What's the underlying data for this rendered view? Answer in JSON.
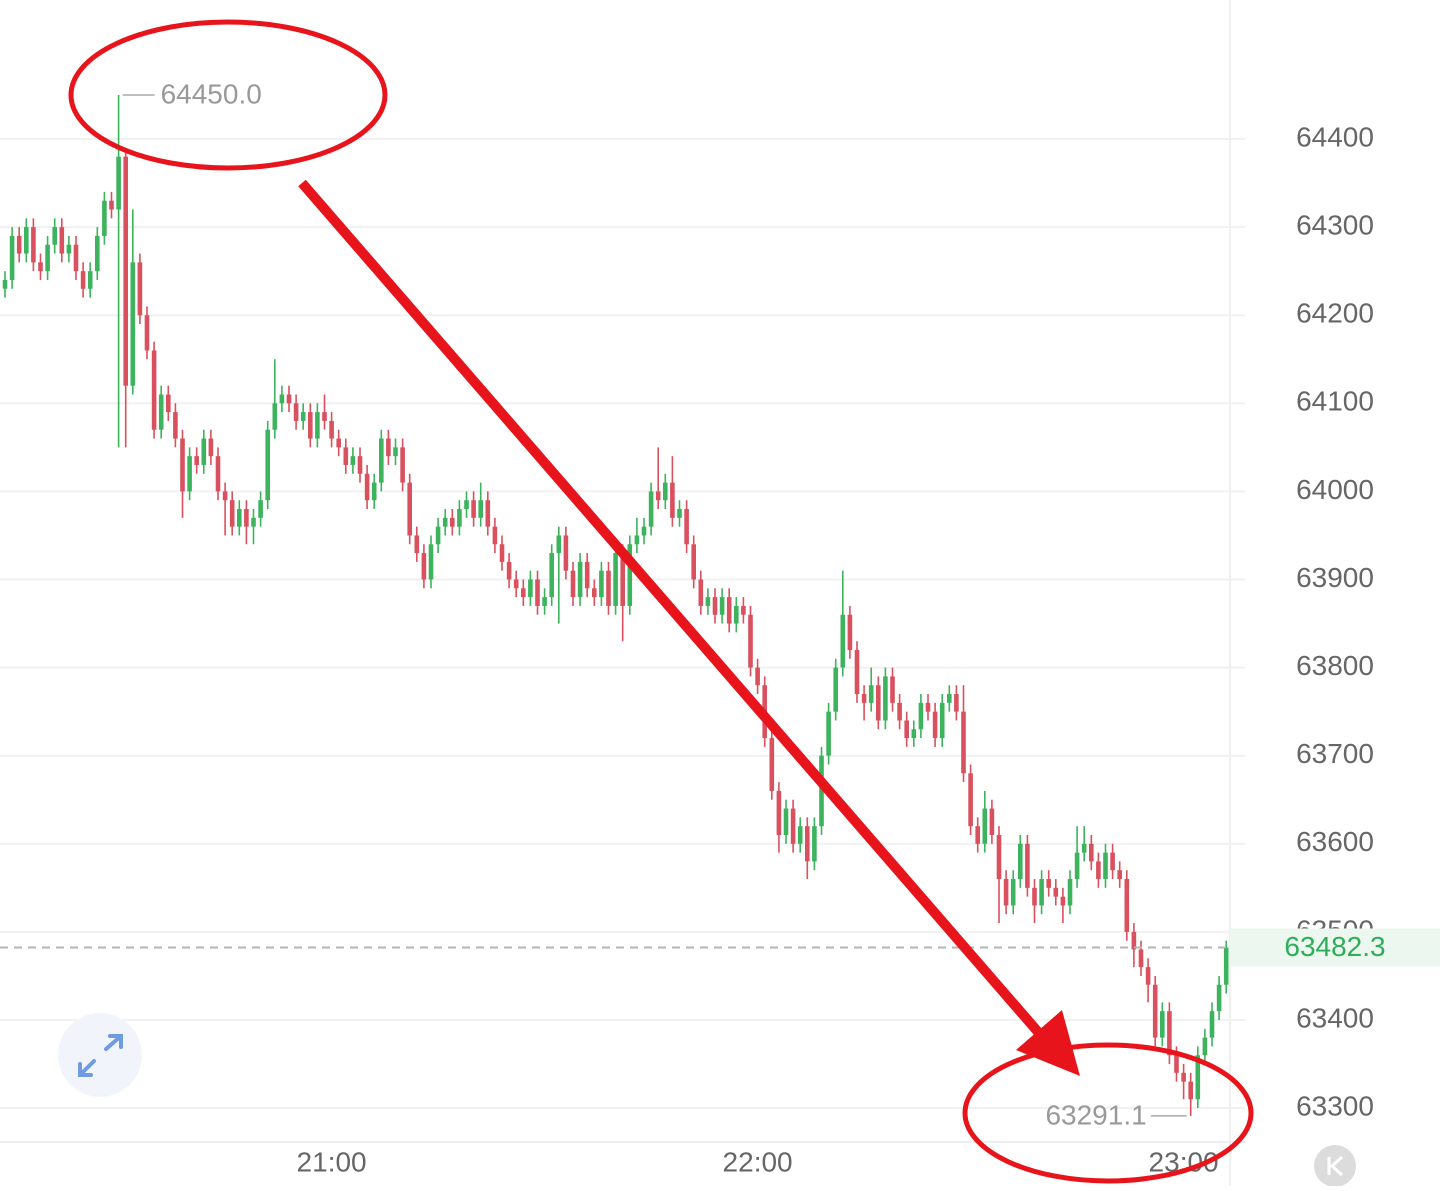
{
  "chart_data": {
    "type": "candlestick",
    "categories": [
      null,
      null,
      null,
      null,
      null,
      null,
      null,
      null,
      null,
      null,
      null,
      null,
      null,
      null,
      null,
      null,
      null,
      null,
      null,
      null,
      null,
      null,
      null,
      null,
      null,
      null,
      null,
      null,
      null,
      null,
      null,
      null,
      null,
      null,
      null,
      null,
      null,
      null,
      null,
      null,
      null,
      null,
      null,
      null,
      null,
      null,
      "21:00",
      null,
      null,
      null,
      null,
      null,
      null,
      null,
      null,
      null,
      null,
      null,
      null,
      null,
      null,
      null,
      null,
      null,
      null,
      null,
      null,
      null,
      null,
      null,
      null,
      null,
      null,
      null,
      null,
      null,
      null,
      null,
      null,
      null,
      null,
      null,
      null,
      null,
      null,
      null,
      null,
      null,
      null,
      null,
      null,
      null,
      null,
      null,
      null,
      null,
      null,
      null,
      null,
      null,
      null,
      null,
      null,
      null,
      null,
      null,
      "22:00",
      null,
      null,
      null,
      null,
      null,
      null,
      null,
      null,
      null,
      null,
      null,
      null,
      null,
      null,
      null,
      null,
      null,
      null,
      null,
      null,
      null,
      null,
      null,
      null,
      null,
      null,
      null,
      null,
      null,
      null,
      null,
      null,
      null,
      null,
      null,
      null,
      null,
      null,
      null,
      null,
      null,
      null,
      null,
      null,
      null,
      null,
      null,
      null,
      null,
      null,
      null,
      null,
      null,
      null,
      null,
      null,
      null,
      null,
      null,
      "23:00",
      null,
      null,
      null,
      null,
      null,
      null
    ],
    "open": [
      64230,
      64240,
      64290,
      64270,
      64300,
      64260,
      64250,
      64280,
      64300,
      64270,
      64280,
      64250,
      64230,
      64250,
      64290,
      64330,
      64320,
      64380,
      64120,
      64260,
      64200,
      64160,
      64070,
      64110,
      64090,
      64060,
      64000,
      64040,
      64030,
      64060,
      64040,
      64000,
      63990,
      63960,
      63980,
      63960,
      63970,
      63990,
      64070,
      64100,
      64110,
      64100,
      64080,
      64090,
      64060,
      64090,
      64080,
      64060,
      64050,
      64030,
      64040,
      64020,
      63990,
      64010,
      64060,
      64040,
      64050,
      64010,
      63950,
      63930,
      63900,
      63940,
      63960,
      63970,
      63960,
      63980,
      63990,
      63970,
      63990,
      63960,
      63940,
      63920,
      63900,
      63890,
      63880,
      63900,
      63870,
      63880,
      63930,
      63950,
      63910,
      63880,
      63920,
      63890,
      63880,
      63910,
      63870,
      63930,
      63870,
      63940,
      63950,
      63960,
      64000,
      63990,
      64010,
      63970,
      63980,
      63940,
      63900,
      63870,
      63880,
      63860,
      63880,
      63850,
      63870,
      63860,
      63800,
      63780,
      63720,
      63660,
      63610,
      63640,
      63600,
      63620,
      63580,
      63620,
      63700,
      63750,
      63800,
      63860,
      63820,
      63770,
      63760,
      63780,
      63740,
      63790,
      63760,
      63740,
      63720,
      63730,
      63760,
      63750,
      63720,
      63760,
      63770,
      63750,
      63680,
      63620,
      63600,
      63640,
      63610,
      63560,
      63530,
      63560,
      63600,
      63550,
      63530,
      63560,
      63550,
      63540,
      63530,
      63560,
      63590,
      63600,
      63580,
      63560,
      63590,
      63570,
      63560,
      63500,
      63480,
      63460,
      63440,
      63380,
      63410,
      63360,
      63340,
      63330,
      63310,
      63360,
      63380,
      63410,
      63440
    ],
    "high": [
      64250,
      64300,
      64300,
      64310,
      64310,
      64270,
      64290,
      64310,
      64310,
      64290,
      64290,
      64260,
      64260,
      64300,
      64340,
      64340,
      64450,
      64390,
      64320,
      64270,
      64210,
      64170,
      64120,
      64120,
      64100,
      64070,
      64050,
      64050,
      64070,
      64070,
      64050,
      64010,
      64000,
      63990,
      63990,
      63980,
      64000,
      64080,
      64150,
      64120,
      64120,
      64110,
      64100,
      64100,
      64100,
      64110,
      64090,
      64070,
      64060,
      64050,
      64050,
      64030,
      64020,
      64070,
      64070,
      64060,
      64060,
      64020,
      63960,
      63940,
      63950,
      63970,
      63980,
      63980,
      63990,
      64000,
      64000,
      64010,
      64000,
      63970,
      63950,
      63930,
      63910,
      63900,
      63910,
      63910,
      63890,
      63940,
      63960,
      63960,
      63920,
      63930,
      63930,
      63900,
      63920,
      63920,
      63940,
      63940,
      63950,
      63970,
      63970,
      64010,
      64050,
      64020,
      64040,
      63990,
      63990,
      63950,
      63910,
      63890,
      63890,
      63890,
      63890,
      63880,
      63880,
      63870,
      63810,
      63790,
      63730,
      63670,
      63650,
      63650,
      63630,
      63630,
      63630,
      63710,
      63760,
      63810,
      63910,
      63870,
      63830,
      63780,
      63800,
      63790,
      63800,
      63800,
      63770,
      63750,
      63740,
      63770,
      63770,
      63760,
      63770,
      63780,
      63780,
      63780,
      63690,
      63630,
      63660,
      63650,
      63620,
      63570,
      63570,
      63610,
      63610,
      63560,
      63570,
      63570,
      63560,
      63550,
      63570,
      63620,
      63620,
      63610,
      63590,
      63600,
      63600,
      63580,
      63570,
      63510,
      63490,
      63470,
      63450,
      63420,
      63420,
      63370,
      63350,
      63340,
      63370,
      63390,
      63420,
      63450,
      63490
    ],
    "low": [
      64220,
      64230,
      64260,
      64260,
      64250,
      64240,
      64240,
      64270,
      64260,
      64260,
      64240,
      64220,
      64220,
      64240,
      64280,
      64310,
      64050,
      64050,
      64110,
      64190,
      64150,
      64060,
      64060,
      64080,
      64050,
      63970,
      63990,
      64020,
      64020,
      64030,
      63990,
      63950,
      63950,
      63950,
      63940,
      63940,
      63960,
      63980,
      64060,
      64090,
      64090,
      64070,
      64070,
      64050,
      64050,
      64070,
      64050,
      64040,
      64020,
      64020,
      64010,
      63980,
      63980,
      64000,
      64030,
      64030,
      64000,
      63940,
      63920,
      63890,
      63890,
      63930,
      63950,
      63950,
      63950,
      63970,
      63960,
      63960,
      63950,
      63930,
      63910,
      63890,
      63880,
      63870,
      63870,
      63860,
      63860,
      63870,
      63850,
      63900,
      63870,
      63870,
      63880,
      63870,
      63870,
      63860,
      63860,
      63830,
      63860,
      63930,
      63940,
      63950,
      63980,
      63980,
      63960,
      63960,
      63930,
      63890,
      63860,
      63860,
      63850,
      63850,
      63840,
      63840,
      63850,
      63790,
      63770,
      63710,
      63650,
      63590,
      63600,
      63590,
      63590,
      63560,
      63570,
      63610,
      63690,
      63740,
      63790,
      63810,
      63760,
      63740,
      63750,
      63730,
      63730,
      63750,
      63730,
      63710,
      63710,
      63720,
      63740,
      63710,
      63710,
      63750,
      63740,
      63670,
      63610,
      63590,
      63590,
      63600,
      63510,
      63520,
      63520,
      63550,
      63540,
      63510,
      63520,
      63540,
      63530,
      63510,
      63520,
      63550,
      63580,
      63570,
      63550,
      63550,
      63560,
      63550,
      63490,
      63460,
      63450,
      63420,
      63370,
      63370,
      63350,
      63330,
      63310,
      63291.1,
      63300,
      63350,
      63370,
      63400,
      63430
    ],
    "close": [
      64240,
      64290,
      64270,
      64300,
      64260,
      64250,
      64280,
      64300,
      64270,
      64280,
      64250,
      64230,
      64250,
      64290,
      64330,
      64320,
      64380,
      64120,
      64260,
      64200,
      64160,
      64070,
      64110,
      64090,
      64060,
      64000,
      64040,
      64030,
      64060,
      64040,
      64000,
      63990,
      63960,
      63980,
      63960,
      63970,
      63990,
      64070,
      64100,
      64110,
      64100,
      64080,
      64090,
      64060,
      64090,
      64080,
      64060,
      64050,
      64030,
      64040,
      64020,
      63990,
      64010,
      64060,
      64040,
      64050,
      64010,
      63950,
      63930,
      63900,
      63940,
      63960,
      63970,
      63960,
      63980,
      63990,
      63970,
      63990,
      63960,
      63940,
      63920,
      63900,
      63890,
      63880,
      63900,
      63870,
      63880,
      63930,
      63950,
      63910,
      63880,
      63920,
      63890,
      63880,
      63910,
      63870,
      63930,
      63870,
      63940,
      63950,
      63960,
      64000,
      63990,
      64010,
      63970,
      63980,
      63940,
      63900,
      63870,
      63880,
      63860,
      63880,
      63850,
      63870,
      63860,
      63800,
      63780,
      63720,
      63660,
      63610,
      63640,
      63600,
      63620,
      63580,
      63620,
      63700,
      63750,
      63800,
      63860,
      63820,
      63770,
      63760,
      63780,
      63740,
      63790,
      63760,
      63740,
      63720,
      63730,
      63760,
      63750,
      63720,
      63760,
      63770,
      63750,
      63680,
      63620,
      63600,
      63640,
      63610,
      63560,
      63530,
      63560,
      63600,
      63550,
      63530,
      63560,
      63550,
      63540,
      63530,
      63560,
      63590,
      63600,
      63580,
      63560,
      63590,
      63570,
      63560,
      63500,
      63480,
      63460,
      63440,
      63380,
      63410,
      63360,
      63340,
      63330,
      63310,
      63360,
      63380,
      63410,
      63440,
      63482.3
    ],
    "up_color": "#3cb35c",
    "down_color": "#d9505e",
    "high_label": "64450.0",
    "high_index": 16,
    "low_index": 167,
    "ylim": [
      63261.5,
      64557.8
    ],
    "yticks": [
      63300,
      63400,
      63500,
      63600,
      63700,
      63800,
      63900,
      64000,
      64100,
      64200,
      64300,
      64400
    ],
    "grid": true
  }
}
